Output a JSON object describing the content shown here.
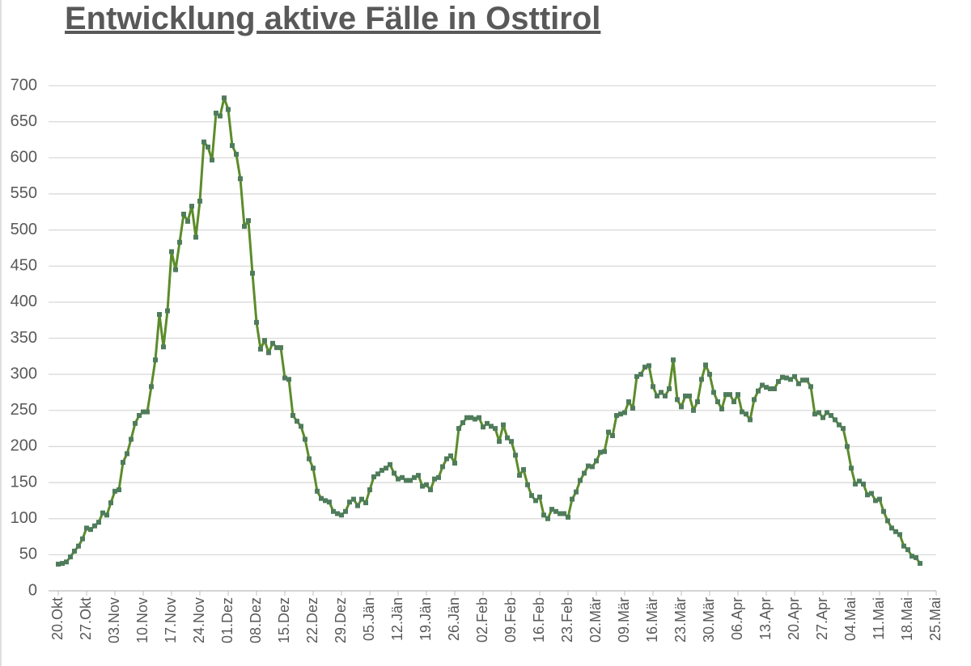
{
  "chart_data": {
    "type": "line",
    "title": "Entwicklung aktive Fälle in Osttirol",
    "categories": [
      "20.Okt",
      null,
      null,
      null,
      null,
      null,
      null,
      "27.Okt",
      null,
      null,
      null,
      null,
      null,
      null,
      "03.Nov",
      null,
      null,
      null,
      null,
      null,
      null,
      "10.Nov",
      null,
      null,
      null,
      null,
      null,
      null,
      "17.Nov",
      null,
      null,
      null,
      null,
      null,
      null,
      "24.Nov",
      null,
      null,
      null,
      null,
      null,
      null,
      "01.Dez",
      null,
      null,
      null,
      null,
      null,
      null,
      "08.Dez",
      null,
      null,
      null,
      null,
      null,
      null,
      "15.Dez",
      null,
      null,
      null,
      null,
      null,
      null,
      "22.Dez",
      null,
      null,
      null,
      null,
      null,
      null,
      "29.Dez",
      null,
      null,
      null,
      null,
      null,
      null,
      "05.Jän",
      null,
      null,
      null,
      null,
      null,
      null,
      "12.Jän",
      null,
      null,
      null,
      null,
      null,
      null,
      "19.Jän",
      null,
      null,
      null,
      null,
      null,
      null,
      "26.Jän",
      null,
      null,
      null,
      null,
      null,
      null,
      "02.Feb",
      null,
      null,
      null,
      null,
      null,
      null,
      "09.Feb",
      null,
      null,
      null,
      null,
      null,
      null,
      "16.Feb",
      null,
      null,
      null,
      null,
      null,
      null,
      "23.Feb",
      null,
      null,
      null,
      null,
      null,
      null,
      "02.Mär",
      null,
      null,
      null,
      null,
      null,
      null,
      "09.Mär",
      null,
      null,
      null,
      null,
      null,
      null,
      "16.Mär",
      null,
      null,
      null,
      null,
      null,
      null,
      "23.Mär",
      null,
      null,
      null,
      null,
      null,
      null,
      "30.Mär",
      null,
      null,
      null,
      null,
      null,
      null,
      "06.Apr",
      null,
      null,
      null,
      null,
      null,
      null,
      "13.Apr",
      null,
      null,
      null,
      null,
      null,
      null,
      "20.Apr",
      null,
      null,
      null,
      null,
      null,
      null,
      "27.Apr",
      null,
      null,
      null,
      null,
      null,
      null,
      "04.Mai",
      null,
      null,
      null,
      null,
      null,
      null,
      "11.Mai",
      null,
      null,
      null,
      null,
      null,
      null,
      "18.Mai",
      null,
      null,
      null,
      null,
      null,
      null,
      "25.Mai"
    ],
    "values": [
      37,
      38,
      40,
      47,
      55,
      62,
      72,
      87,
      85,
      90,
      95,
      108,
      105,
      122,
      138,
      140,
      178,
      190,
      210,
      232,
      243,
      248,
      248,
      283,
      320,
      383,
      338,
      388,
      470,
      445,
      483,
      522,
      512,
      533,
      490,
      540,
      622,
      615,
      597,
      662,
      658,
      683,
      667,
      617,
      605,
      571,
      505,
      513,
      440,
      372,
      335,
      347,
      330,
      343,
      337,
      337,
      295,
      293,
      243,
      235,
      228,
      210,
      183,
      170,
      138,
      128,
      125,
      123,
      110,
      107,
      105,
      110,
      123,
      127,
      118,
      127,
      122,
      140,
      158,
      162,
      167,
      170,
      175,
      163,
      155,
      157,
      153,
      153,
      157,
      160,
      145,
      147,
      140,
      155,
      157,
      172,
      183,
      187,
      177,
      225,
      233,
      240,
      240,
      238,
      240,
      227,
      232,
      228,
      225,
      207,
      230,
      212,
      207,
      188,
      160,
      168,
      147,
      132,
      125,
      130,
      105,
      100,
      113,
      110,
      107,
      107,
      102,
      127,
      137,
      153,
      163,
      173,
      172,
      180,
      192,
      193,
      220,
      215,
      243,
      245,
      247,
      262,
      253,
      297,
      300,
      310,
      312,
      283,
      270,
      275,
      270,
      280,
      320,
      265,
      255,
      270,
      270,
      250,
      262,
      293,
      313,
      300,
      275,
      262,
      252,
      272,
      272,
      262,
      272,
      248,
      245,
      237,
      265,
      277,
      285,
      282,
      280,
      280,
      290,
      296,
      295,
      293,
      297,
      287,
      292,
      292,
      283,
      245,
      247,
      240,
      247,
      243,
      237,
      230,
      225,
      200,
      170,
      148,
      152,
      148,
      133,
      135,
      125,
      127,
      110,
      97,
      87,
      82,
      78,
      62,
      57,
      48,
      46,
      38,
      null,
      null,
      null,
      null
    ],
    "color": "#5b8c2a",
    "marker_color": "#4f7c5b",
    "ylim": [
      0,
      700
    ],
    "yticks": [
      0,
      50,
      100,
      150,
      200,
      250,
      300,
      350,
      400,
      450,
      500,
      550,
      600,
      650,
      700
    ],
    "grid": true
  }
}
